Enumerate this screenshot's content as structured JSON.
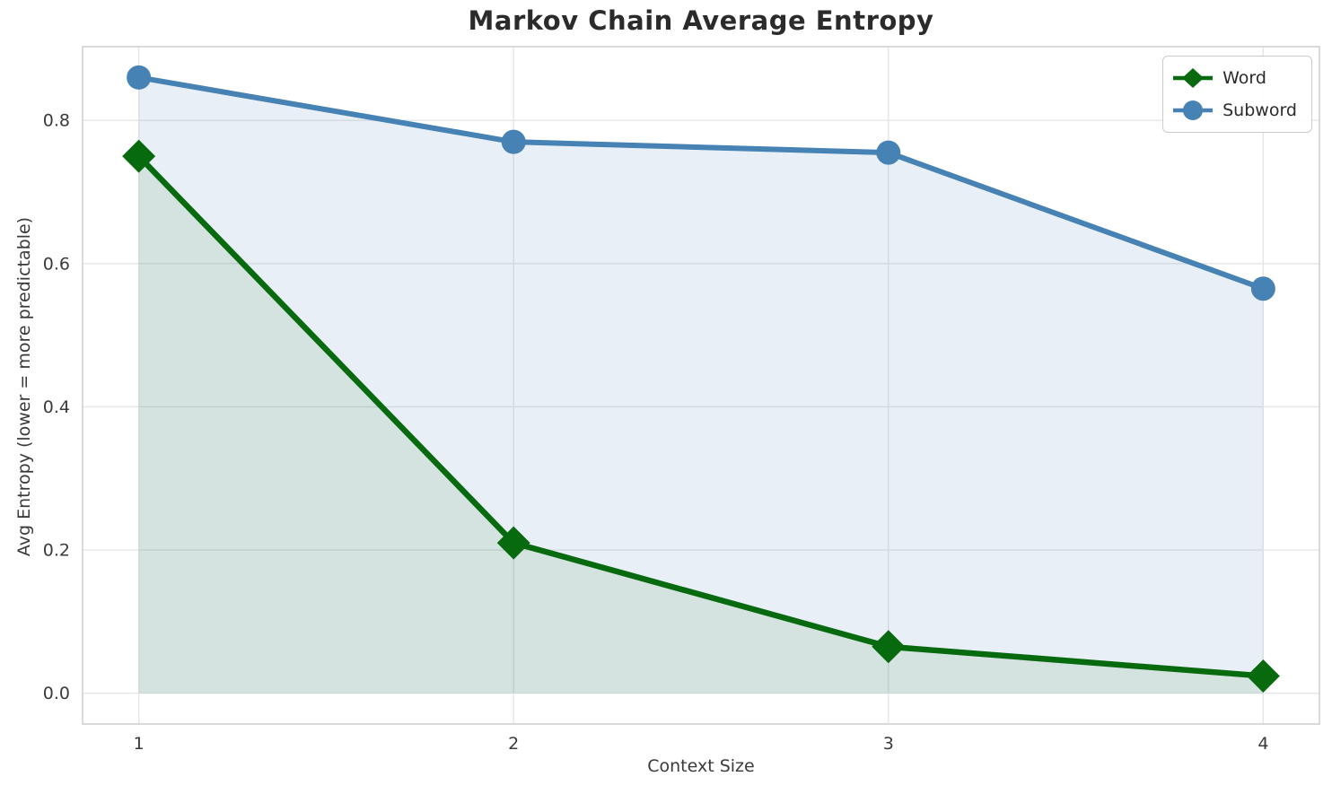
{
  "chart_data": {
    "type": "line",
    "title": "Markov Chain Average Entropy",
    "xlabel": "Context Size",
    "ylabel": "Avg Entropy (lower = more predictable)",
    "x": [
      1,
      2,
      3,
      4
    ],
    "xticks": [
      1,
      2,
      3,
      4
    ],
    "yticks": [
      0.0,
      0.2,
      0.4,
      0.6,
      0.8
    ],
    "xlim": [
      0.85,
      4.15
    ],
    "ylim": [
      -0.043,
      0.903
    ],
    "grid": true,
    "legend_position": "upper right",
    "series": [
      {
        "name": "Word",
        "marker": "diamond",
        "color": "#086a0e",
        "fill_color": "rgba(0,100,0,0.085)",
        "values": [
          0.75,
          0.21,
          0.065,
          0.024
        ]
      },
      {
        "name": "Subword",
        "marker": "circle",
        "color": "#4682b4",
        "fill_color": "rgba(70,130,180,0.125)",
        "values": [
          0.86,
          0.77,
          0.755,
          0.565
        ]
      }
    ],
    "colors": {
      "grid": "#e6e6e6",
      "spine": "#d0d0d0",
      "tick_label": "#3a3a3a",
      "title": "#2b2b2b"
    }
  }
}
